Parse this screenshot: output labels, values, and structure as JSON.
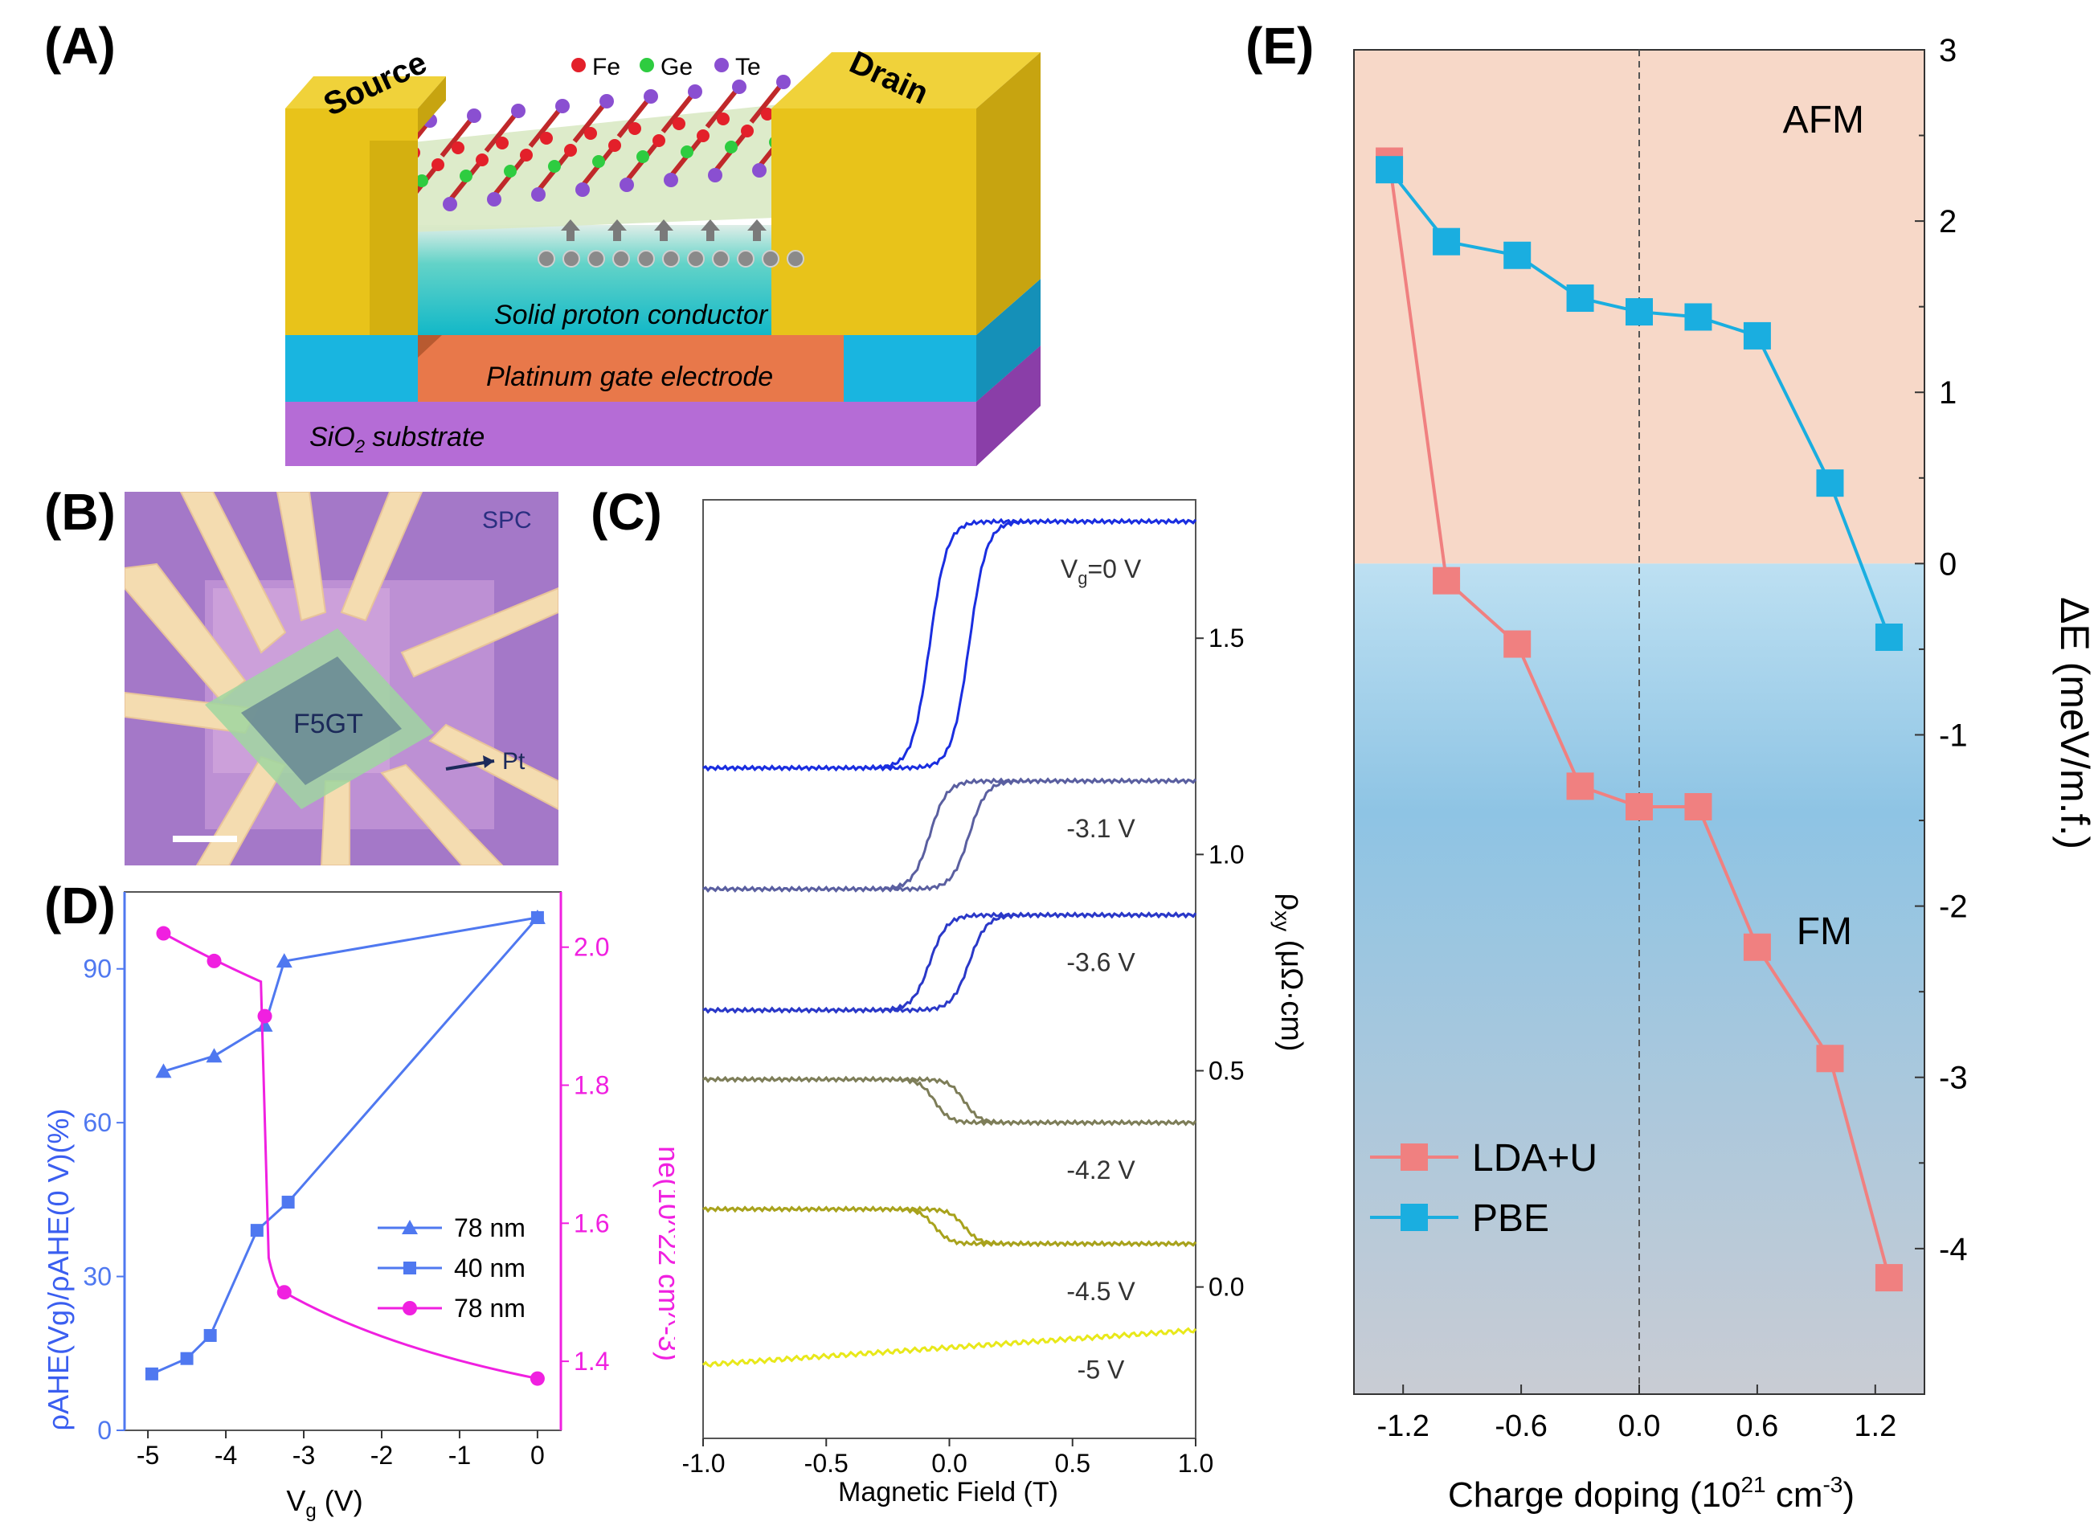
{
  "figure": {
    "panel_labels": [
      "(A)",
      "(B)",
      "(C)",
      "(D)",
      "(E)"
    ]
  },
  "panel_a": {
    "contacts": [
      "Source",
      "Drain"
    ],
    "legend": [
      {
        "element": "Fe",
        "color": "#e3202a"
      },
      {
        "element": "Ge",
        "color": "#2ecc40"
      },
      {
        "element": "Te",
        "color": "#8a4fd1"
      }
    ],
    "layers": {
      "conductor": "Solid proton conductor",
      "gate": "Platinum gate electrode",
      "substrate_main": "SiO",
      "substrate_sub": "2",
      "substrate_rest": " substrate"
    },
    "colors": {
      "gold": "#e8c31a",
      "cyan": "#19b5e0",
      "orange": "#e8784a",
      "purple": "#b56cd6"
    }
  },
  "panel_b": {
    "corner_label": "SPC",
    "flake_label": "F5GT",
    "arrow_label": "Pt"
  },
  "chart_data": [
    {
      "id": "D",
      "type": "line",
      "xlabel_main": "V",
      "xlabel_sub": "g",
      "xlabel_rest": " (V)",
      "xlim": [
        -5.3,
        0.3
      ],
      "ylim_left": [
        0,
        105
      ],
      "ylim_right": [
        1.3,
        2.08
      ],
      "xticks": [
        "-5",
        "-4",
        "-3",
        "-2",
        "-1",
        "0"
      ],
      "yticks_left": [
        "0",
        "30",
        "60",
        "90"
      ],
      "yticks_right": [
        "1.4",
        "1.6",
        "1.8",
        "2.0"
      ],
      "ylabel_left": "ρAHE(Vg)/ρAHE(0 V)(%)",
      "ylabel_right": "ne(10^22 cm^-3)",
      "series": [
        {
          "name": "78 nm",
          "marker": "triangle",
          "color": "#4f78f0",
          "axis": "left",
          "x": [
            -4.8,
            -4.15,
            -3.5,
            -3.25,
            0
          ],
          "y": [
            70,
            73,
            79,
            91.5,
            100
          ]
        },
        {
          "name": "40 nm",
          "marker": "square",
          "color": "#4f78f0",
          "axis": "left",
          "x": [
            -4.95,
            -4.5,
            -4.2,
            -3.6,
            -3.2,
            0
          ],
          "y": [
            11,
            14,
            18.5,
            39,
            44.5,
            100
          ]
        },
        {
          "name": "78 nm",
          "marker": "circle",
          "color": "#f020e0",
          "axis": "right",
          "x": [
            -4.8,
            -4.15,
            -3.5,
            -3.25,
            0
          ],
          "y": [
            2.02,
            1.98,
            1.9,
            1.5,
            1.375
          ]
        }
      ]
    },
    {
      "id": "C",
      "type": "line",
      "xlabel": "Magnetic Field (T)",
      "ylabel_main": "ρ",
      "ylabel_sub": "xy",
      "ylabel_rest": " (μΩ·cm)",
      "xlim": [
        -1.0,
        1.0
      ],
      "ylim": [
        -0.35,
        1.82
      ],
      "xticks": [
        "-1.0",
        "-0.5",
        "0.0",
        "0.5",
        "1.0"
      ],
      "yticks": [
        "0.0",
        "0.5",
        "1.0",
        "1.5"
      ],
      "series": [
        {
          "name": "Vg=0 V",
          "label_main": "V",
          "label_sub": "g",
          "label_rest": "=0 V",
          "color": "#1a2ee0",
          "low": 1.2,
          "high": 1.77,
          "sign": 1,
          "hc": 0.08,
          "width": 0.07
        },
        {
          "name": "-3.1 V",
          "label": "-3.1 V",
          "color": "#5a5fa0",
          "low": 0.92,
          "high": 1.17,
          "sign": 1,
          "hc": 0.08,
          "width": 0.07
        },
        {
          "name": "-3.6 V",
          "label": "-3.6 V",
          "color": "#2a38c8",
          "low": 0.64,
          "high": 0.86,
          "sign": 1,
          "hc": 0.08,
          "width": 0.07
        },
        {
          "name": "-4.2 V",
          "label": "-4.2 V",
          "color": "#7d7d58",
          "low": 0.38,
          "high": 0.48,
          "sign": -1,
          "hc": 0.06,
          "width": 0.06
        },
        {
          "name": "-4.5 V",
          "label": "-4.5 V",
          "color": "#a8a21c",
          "low": 0.1,
          "high": 0.18,
          "sign": -1,
          "hc": 0.06,
          "width": 0.06
        },
        {
          "name": "-5 V",
          "label": "-5 V",
          "color": "#e8e81a",
          "low": -0.18,
          "high": -0.1,
          "sign": 0,
          "hc": 0,
          "width": 0
        }
      ]
    },
    {
      "id": "E",
      "type": "line",
      "xlabel_main": "Charge doping (10",
      "xlabel_sup1": "21",
      "xlabel_mid": " cm",
      "xlabel_sup2": "-3",
      "xlabel_end": ")",
      "ylabel": "ΔE (meV/m.f.)",
      "xlim": [
        -1.45,
        1.45
      ],
      "ylim": [
        -4.85,
        3.0
      ],
      "xticks": [
        "-1.2",
        "-0.6",
        "0.0",
        "0.6",
        "1.2"
      ],
      "yticks": [
        "-4",
        "-3",
        "-2",
        "-1",
        "0",
        "1",
        "2",
        "3"
      ],
      "region_labels": [
        "AFM",
        "FM"
      ],
      "series": [
        {
          "name": "LDA+U",
          "color": "#f08080",
          "x": [
            -1.27,
            -0.98,
            -0.62,
            -0.3,
            0.0,
            0.3,
            0.6,
            0.97,
            1.27
          ],
          "y": [
            2.35,
            -0.1,
            -0.47,
            -1.3,
            -1.42,
            -1.42,
            -2.24,
            -2.89,
            -4.17
          ]
        },
        {
          "name": "PBE",
          "color": "#1aaee0",
          "x": [
            -1.27,
            -0.98,
            -0.62,
            -0.3,
            0.0,
            0.3,
            0.6,
            0.97,
            1.27
          ],
          "y": [
            2.3,
            1.88,
            1.8,
            1.55,
            1.47,
            1.44,
            1.33,
            0.47,
            -0.43
          ]
        }
      ]
    }
  ]
}
